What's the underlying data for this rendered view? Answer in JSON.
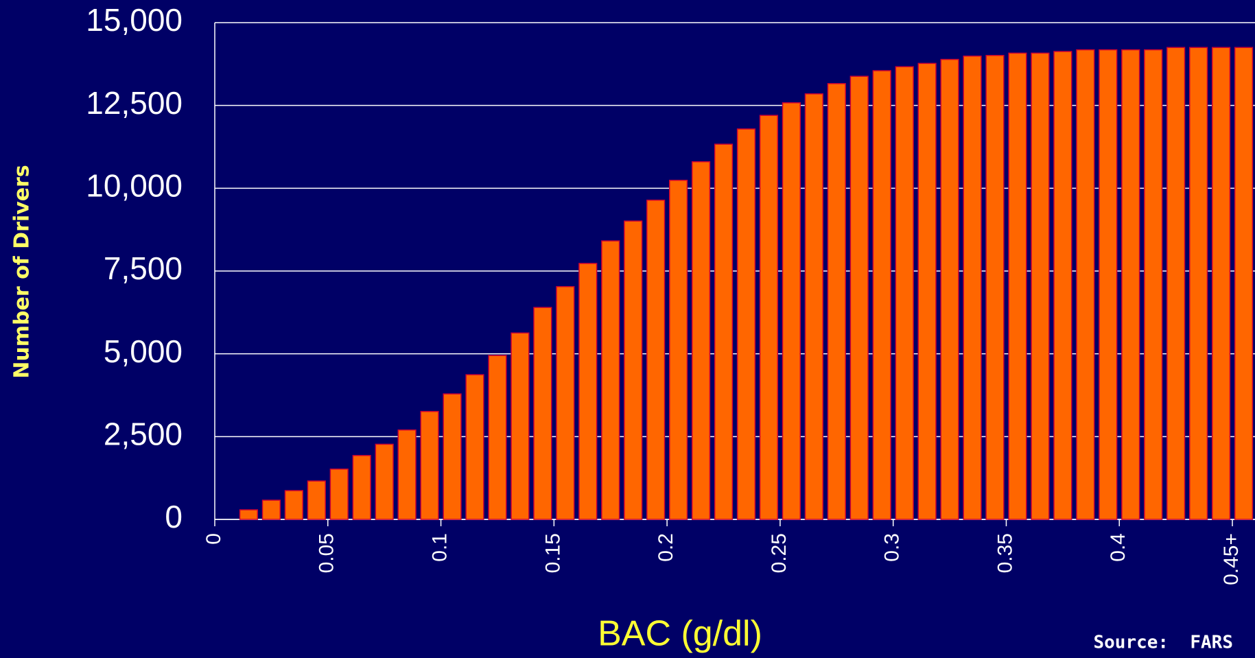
{
  "chart_data": {
    "type": "bar",
    "y_label": "Number of Drivers",
    "x_label": "BAC (g/dl)",
    "source": "Source:  FARS",
    "categories": [
      "0",
      null,
      null,
      null,
      null,
      "0.05",
      null,
      null,
      null,
      null,
      "0.1",
      null,
      null,
      null,
      null,
      "0.15",
      null,
      null,
      null,
      null,
      "0.2",
      null,
      null,
      null,
      null,
      "0.25",
      null,
      null,
      null,
      null,
      "0.3",
      null,
      null,
      null,
      null,
      "0.35",
      null,
      null,
      null,
      null,
      "0.4",
      null,
      null,
      null,
      null,
      "0.45+"
    ],
    "values": [
      0,
      290,
      580,
      870,
      1160,
      1520,
      1930,
      2270,
      2700,
      3260,
      3790,
      4370,
      4950,
      5630,
      6400,
      7030,
      7730,
      8410,
      9010,
      9640,
      10240,
      10800,
      11330,
      11790,
      12200,
      12580,
      12850,
      13160,
      13380,
      13550,
      13670,
      13770,
      13890,
      13990,
      14010,
      14080,
      14080,
      14130,
      14180,
      14180,
      14180,
      14180,
      14250,
      14250,
      14250,
      14250
    ],
    "color": "#ff6600",
    "ylim": [
      0,
      15000
    ],
    "yticks": [
      0,
      {
        "value": 2500,
        "label": "2,500"
      },
      {
        "value": 5000,
        "label": "5,000"
      },
      {
        "value": 7500,
        "label": "7,500"
      },
      {
        "value": 10000,
        "label": "10,000"
      },
      {
        "value": 12500,
        "label": "12,500"
      },
      {
        "value": 15000,
        "label": "15,000"
      }
    ],
    "grid": true
  }
}
